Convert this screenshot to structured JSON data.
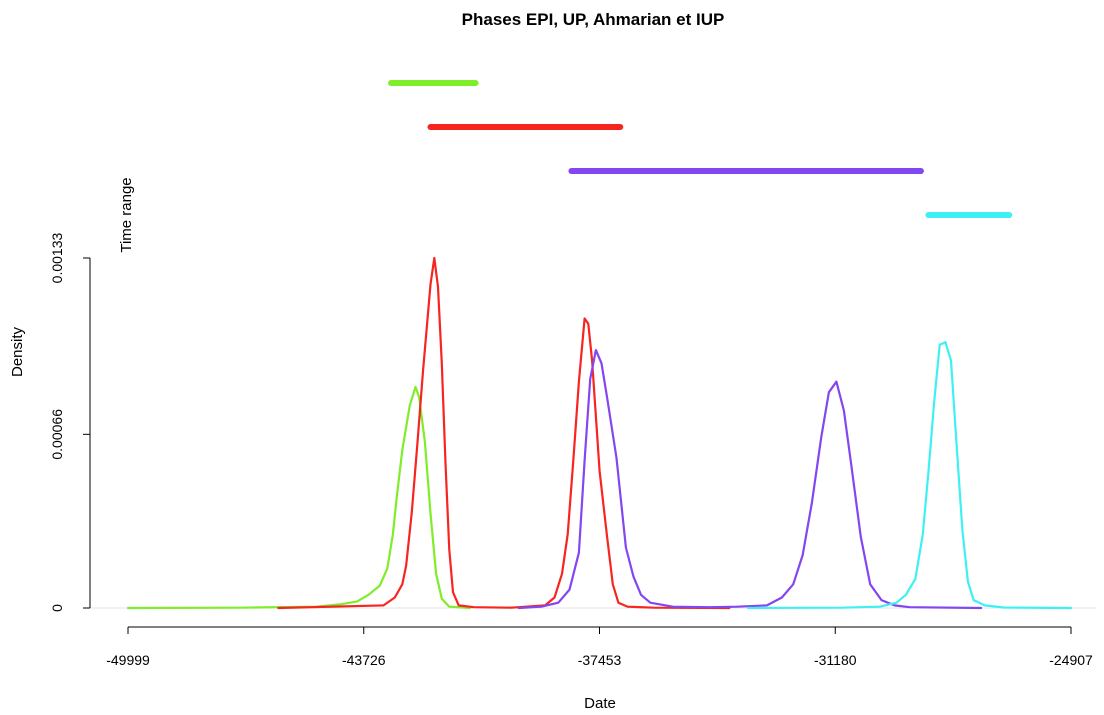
{
  "chart_data": {
    "type": "line",
    "title": "Phases EPI, UP, Ahmarian et IUP",
    "xlabel": "Date",
    "ylabel": "Density",
    "range_label": "Time range",
    "xlim": [
      -49999,
      -24907
    ],
    "ylim": [
      0,
      0.00133
    ],
    "x_ticks": [
      "-49999",
      "-43726",
      "-37453",
      "-31180",
      "-24907"
    ],
    "y_ticks": [
      "0",
      "0.00066",
      "0.00133"
    ],
    "series": [
      {
        "color": "#7FED2A",
        "points": [
          [
            -49999,
            0
          ],
          [
            -47000,
            1e-06
          ],
          [
            -45000,
            5e-06
          ],
          [
            -44300,
            1.5e-05
          ],
          [
            -43900,
            2.5e-05
          ],
          [
            -43600,
            5e-05
          ],
          [
            -43300,
            8.5e-05
          ],
          [
            -43100,
            0.00015
          ],
          [
            -42950,
            0.00028
          ],
          [
            -42850,
            0.00042
          ],
          [
            -42700,
            0.0006
          ],
          [
            -42500,
            0.00077
          ],
          [
            -42350,
            0.00084
          ],
          [
            -42250,
            0.0008
          ],
          [
            -42100,
            0.00063
          ],
          [
            -41950,
            0.00036
          ],
          [
            -41800,
            0.00013
          ],
          [
            -41650,
            3.5e-05
          ],
          [
            -41450,
            5e-06
          ],
          [
            -40900,
            0
          ]
        ]
      },
      {
        "color": "#F7251F",
        "points": [
          [
            -46000,
            0
          ],
          [
            -43200,
            1e-05
          ],
          [
            -42900,
            4e-05
          ],
          [
            -42700,
            9e-05
          ],
          [
            -42600,
            0.00016
          ],
          [
            -42450,
            0.00036
          ],
          [
            -42300,
            0.00062
          ],
          [
            -42150,
            0.0009
          ],
          [
            -41950,
            0.00123
          ],
          [
            -41850,
            0.00133
          ],
          [
            -41750,
            0.00122
          ],
          [
            -41650,
            0.00093
          ],
          [
            -41550,
            0.00055
          ],
          [
            -41450,
            0.00022
          ],
          [
            -41350,
            6e-05
          ],
          [
            -41200,
            1e-05
          ],
          [
            -40800,
            3e-06
          ],
          [
            -39800,
            1e-06
          ],
          [
            -38900,
            1e-05
          ],
          [
            -38650,
            4e-05
          ],
          [
            -38450,
            0.00013
          ],
          [
            -38300,
            0.00028
          ],
          [
            -38150,
            0.00056
          ],
          [
            -38000,
            0.00086
          ],
          [
            -37850,
            0.0011
          ],
          [
            -37750,
            0.00108
          ],
          [
            -37650,
            0.00094
          ],
          [
            -37450,
            0.00052
          ],
          [
            -37250,
            0.00027
          ],
          [
            -37100,
            9e-05
          ],
          [
            -36950,
            2e-05
          ],
          [
            -36700,
            5e-06
          ],
          [
            -36000,
            1e-06
          ],
          [
            -34000,
            0
          ]
        ]
      },
      {
        "color": "#8346F0",
        "points": [
          [
            -39600,
            0
          ],
          [
            -39000,
            5e-06
          ],
          [
            -38550,
            2e-05
          ],
          [
            -38250,
            7e-05
          ],
          [
            -38000,
            0.00021
          ],
          [
            -37850,
            0.00056
          ],
          [
            -37700,
            0.00087
          ],
          [
            -37550,
            0.00098
          ],
          [
            -37400,
            0.00093
          ],
          [
            -37250,
            0.0008
          ],
          [
            -37000,
            0.00057
          ],
          [
            -36750,
            0.00023
          ],
          [
            -36550,
            0.00012
          ],
          [
            -36350,
            5e-05
          ],
          [
            -36100,
            2e-05
          ],
          [
            -35500,
            5e-06
          ],
          [
            -34500,
            3e-06
          ],
          [
            -33800,
            5e-06
          ],
          [
            -33000,
            1e-05
          ],
          [
            -32600,
            4e-05
          ],
          [
            -32300,
            9e-05
          ],
          [
            -32050,
            0.0002
          ],
          [
            -31800,
            0.0004
          ],
          [
            -31550,
            0.00065
          ],
          [
            -31350,
            0.00082
          ],
          [
            -31150,
            0.00086
          ],
          [
            -30950,
            0.00075
          ],
          [
            -30750,
            0.00054
          ],
          [
            -30500,
            0.00027
          ],
          [
            -30250,
            9e-05
          ],
          [
            -29950,
            3e-05
          ],
          [
            -29600,
            1e-05
          ],
          [
            -29200,
            3e-06
          ],
          [
            -27300,
            0
          ]
        ]
      },
      {
        "color": "#3EF0F4",
        "points": [
          [
            -33500,
            0
          ],
          [
            -31000,
            1e-06
          ],
          [
            -30000,
            5e-06
          ],
          [
            -29550,
            2e-05
          ],
          [
            -29300,
            5e-05
          ],
          [
            -29050,
            0.00011
          ],
          [
            -28850,
            0.00028
          ],
          [
            -28700,
            0.00052
          ],
          [
            -28550,
            0.00078
          ],
          [
            -28400,
            0.001
          ],
          [
            -28250,
            0.00101
          ],
          [
            -28100,
            0.00094
          ],
          [
            -27950,
            0.00062
          ],
          [
            -27800,
            0.0003
          ],
          [
            -27650,
            0.0001
          ],
          [
            -27500,
            3e-05
          ],
          [
            -27200,
            1e-05
          ],
          [
            -26700,
            2e-06
          ],
          [
            -24907,
            0
          ]
        ]
      }
    ],
    "time_ranges": [
      {
        "color": "#7FED2A",
        "start": -43000,
        "end": -40750,
        "row": 1
      },
      {
        "color": "#F7251F",
        "start": -41950,
        "end": -36900,
        "row": 2
      },
      {
        "color": "#8346F0",
        "start": -38200,
        "end": -28900,
        "row": 3
      },
      {
        "color": "#3EF0F4",
        "start": -28700,
        "end": -26550,
        "row": 4
      }
    ]
  }
}
